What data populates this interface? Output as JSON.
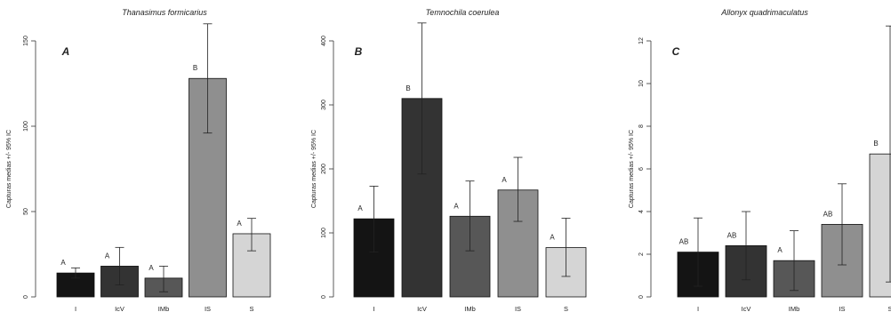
{
  "chart_data": [
    {
      "type": "bar",
      "panel": "A",
      "title": "Thanasimus formicarius",
      "ylabel": "Capturas medias +/- 95% IC",
      "ylim": [
        0,
        150
      ],
      "yticks": [
        0,
        50,
        100,
        150
      ],
      "categories": [
        "I",
        "IcV",
        "IMb",
        "IS",
        "S"
      ],
      "values": [
        14,
        18,
        11,
        128,
        37
      ],
      "ci_low": [
        11,
        7,
        3,
        96,
        27
      ],
      "ci_high": [
        17,
        29,
        18,
        160,
        46
      ],
      "letters": [
        "A",
        "A",
        "A",
        "B",
        "A"
      ],
      "colors": [
        "#141414",
        "#333333",
        "#575757",
        "#8f8f8f",
        "#d5d5d5"
      ]
    },
    {
      "type": "bar",
      "panel": "B",
      "title": "Temnochila coerulea",
      "ylabel": "Capturas medias +/- 95% IC",
      "ylim": [
        0,
        400
      ],
      "yticks": [
        0,
        100,
        200,
        300,
        400
      ],
      "categories": [
        "I",
        "IcV",
        "IMb",
        "IS",
        "S"
      ],
      "values": [
        122,
        310,
        126,
        167,
        77
      ],
      "ci_low": [
        70,
        192,
        72,
        118,
        32
      ],
      "ci_high": [
        173,
        428,
        181,
        218,
        123
      ],
      "letters": [
        "A",
        "B",
        "A",
        "A",
        "A"
      ],
      "colors": [
        "#141414",
        "#333333",
        "#575757",
        "#8f8f8f",
        "#d5d5d5"
      ]
    },
    {
      "type": "bar",
      "panel": "C",
      "title": "Allonyx quadrimaculatus",
      "ylabel": "Capturas medias +/- 95% IC",
      "ylim": [
        0,
        12
      ],
      "yticks": [
        0,
        2,
        4,
        6,
        8,
        10,
        12
      ],
      "categories": [
        "I",
        "IcV",
        "IMb",
        "IS",
        "S"
      ],
      "values": [
        2.1,
        2.4,
        1.7,
        3.4,
        6.7
      ],
      "ci_low": [
        0.5,
        0.8,
        0.3,
        1.5,
        0.7
      ],
      "ci_high": [
        3.7,
        4.0,
        3.1,
        5.3,
        12.7
      ],
      "letters": [
        "AB",
        "AB",
        "A",
        "AB",
        "B"
      ],
      "colors": [
        "#141414",
        "#333333",
        "#575757",
        "#8f8f8f",
        "#d5d5d5"
      ]
    }
  ]
}
